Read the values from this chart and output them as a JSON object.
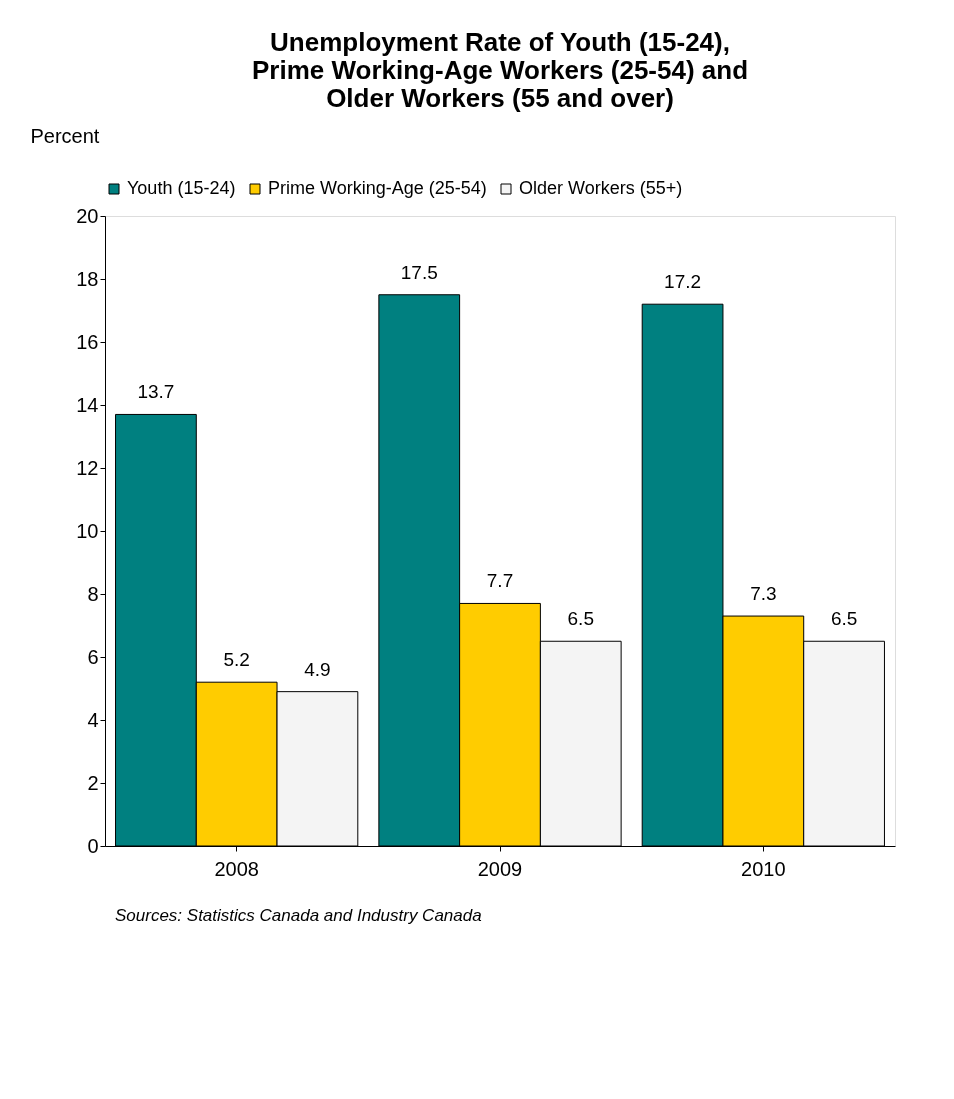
{
  "chart_data": {
    "type": "bar",
    "title": [
      "Unemployment Rate of Youth (15-24),",
      "Prime Working-Age Workers (25-54) and",
      "Older Workers (55 and over)"
    ],
    "ylabel": "Percent",
    "categories": [
      "2008",
      "2009",
      "2010"
    ],
    "series": [
      {
        "name": "Youth (15-24)",
        "color": "#008080",
        "values": [
          13.7,
          17.5,
          17.2
        ]
      },
      {
        "name": "Prime Working-Age (25-54)",
        "color": "#ffcc00",
        "values": [
          5.2,
          7.7,
          7.3
        ]
      },
      {
        "name": "Older Workers (55+)",
        "color": "#f4f4f4",
        "values": [
          4.9,
          6.5,
          6.5
        ]
      }
    ],
    "ylim": [
      0,
      20
    ],
    "yticks": [
      0,
      2,
      4,
      6,
      8,
      10,
      12,
      14,
      16,
      18,
      20
    ],
    "data_labels": true,
    "legend": "top",
    "grid": false,
    "annotations": [
      "Sources: Statistics Canada and Industry Canada"
    ]
  }
}
